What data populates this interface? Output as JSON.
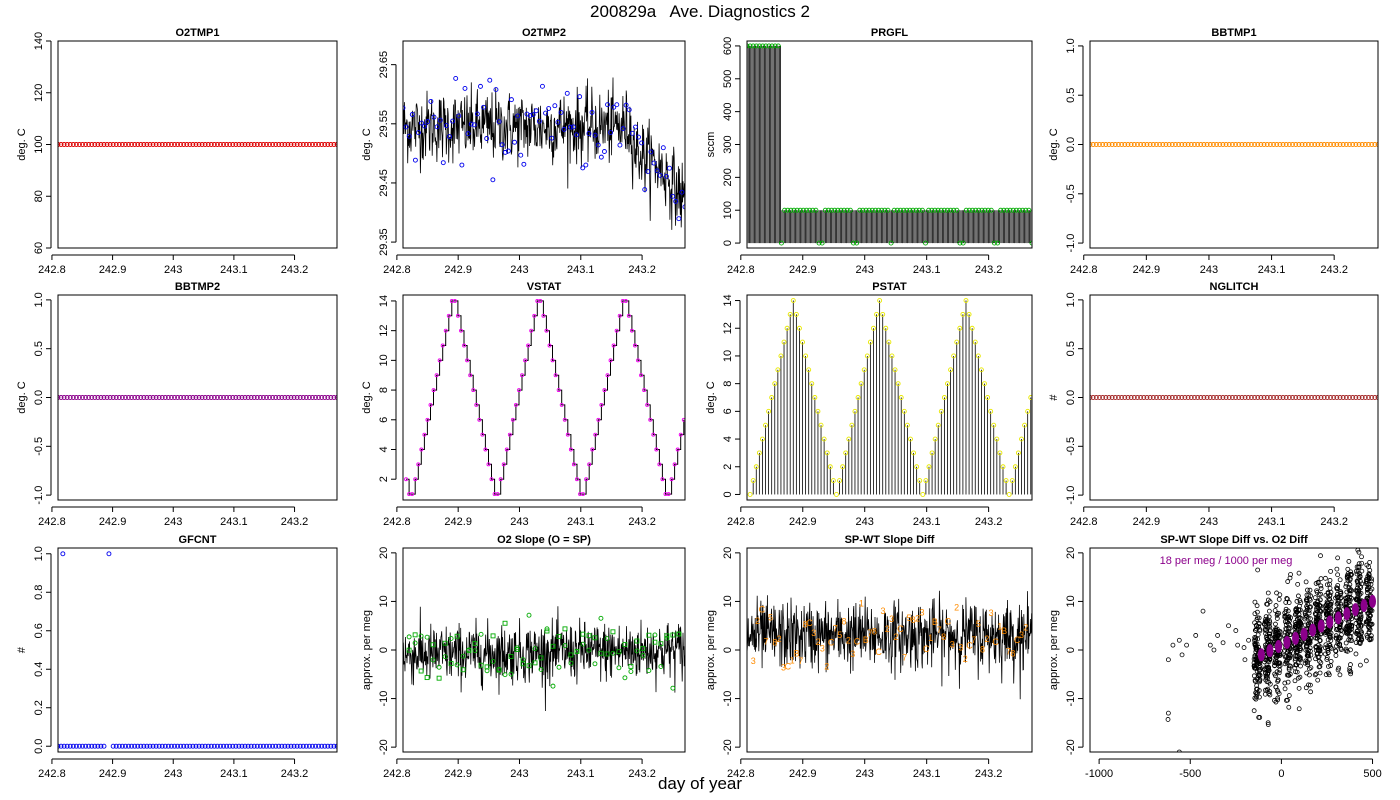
{
  "figure": {
    "title": "200829a   Ave. Diagnostics 2",
    "xlabel": "day of year"
  },
  "colors": {
    "red": "#dd0000",
    "blue": "#0000ee",
    "green": "#00aa00",
    "orange": "#ff8c00",
    "purple": "#8b008b",
    "magenta": "#ee00ee",
    "yellow": "#e8e800",
    "brown": "#a52a2a",
    "black": "#000000"
  },
  "chart_data": [
    {
      "id": "o2tmp1",
      "type": "scatter",
      "title": "O2TMP1",
      "ylabel": "deg. C",
      "xlim": [
        242.81,
        243.27
      ],
      "ylim": [
        60,
        140
      ],
      "xticks": [
        242.8,
        242.9,
        243.0,
        243.1,
        243.2
      ],
      "yticks": [
        60,
        80,
        100,
        120,
        140
      ],
      "series": [
        {
          "name": "O2TMP1",
          "style": "points",
          "color": "red",
          "x_range": [
            242.81,
            243.27
          ],
          "n": 92,
          "constant": 100
        }
      ]
    },
    {
      "id": "o2tmp2",
      "type": "line",
      "title": "O2TMP2",
      "ylabel": "deg. C",
      "xlim": [
        242.81,
        243.27
      ],
      "ylim": [
        29.34,
        29.69
      ],
      "xticks": [
        242.8,
        242.9,
        243.0,
        243.1,
        243.2
      ],
      "yticks": [
        29.35,
        29.45,
        29.55,
        29.65
      ],
      "series": [
        {
          "name": "raw",
          "style": "noise",
          "color": "black",
          "x_range": [
            242.81,
            243.27
          ],
          "n": 600,
          "base": [
            [
              242.81,
              29.545
            ],
            [
              243.18,
              29.545
            ],
            [
              243.19,
              29.505
            ],
            [
              243.23,
              29.475
            ],
            [
              243.27,
              29.42
            ]
          ],
          "noise": 0.06,
          "clamp": [
            29.36,
            29.68
          ]
        },
        {
          "name": "average",
          "style": "points",
          "color": "blue",
          "x_range": [
            242.81,
            243.27
          ],
          "n": 92,
          "base": [
            [
              242.81,
              29.545
            ],
            [
              243.18,
              29.545
            ],
            [
              243.19,
              29.505
            ],
            [
              243.23,
              29.475
            ],
            [
              243.27,
              29.41
            ]
          ],
          "noise": 0.035
        }
      ]
    },
    {
      "id": "prgfl",
      "type": "line",
      "title": "PRGFL",
      "ylabel": "sccm",
      "xlim": [
        242.81,
        243.27
      ],
      "ylim": [
        -15,
        615
      ],
      "xticks": [
        242.8,
        242.9,
        243.0,
        243.1,
        243.2
      ],
      "yticks": [
        0,
        100,
        200,
        300,
        400,
        500,
        600
      ],
      "series": [
        {
          "name": "raw",
          "style": "spikes",
          "color": "black",
          "x_range": [
            242.81,
            243.27
          ],
          "n": 230,
          "level_segments": [
            [
              242.81,
              242.866,
              600
            ],
            [
              242.866,
              243.27,
              100
            ]
          ],
          "baseline": 0
        },
        {
          "name": "average",
          "style": "points",
          "color": "green",
          "x_range": [
            242.81,
            243.27
          ],
          "n": 92,
          "level_segments": [
            [
              242.81,
              242.866,
              600
            ],
            [
              242.866,
              243.27,
              100
            ]
          ],
          "dips": [
            242.866,
            242.928,
            242.985,
            243.042,
            243.099,
            243.156,
            243.213,
            243.27
          ],
          "dip_value": 0
        }
      ]
    },
    {
      "id": "bbtmp1",
      "type": "scatter",
      "title": "BBTMP1",
      "ylabel": "deg. C",
      "xlim": [
        242.81,
        243.27
      ],
      "ylim": [
        -1.05,
        1.05
      ],
      "xticks": [
        242.8,
        242.9,
        243.0,
        243.1,
        243.2
      ],
      "yticks": [
        -1.0,
        -0.5,
        0.0,
        0.5,
        1.0
      ],
      "series": [
        {
          "name": "BBTMP1",
          "style": "points",
          "color": "orange",
          "x_range": [
            242.81,
            243.27
          ],
          "n": 92,
          "constant": 0
        }
      ]
    },
    {
      "id": "bbtmp2",
      "type": "scatter",
      "title": "BBTMP2",
      "ylabel": "deg. C",
      "xlim": [
        242.81,
        243.27
      ],
      "ylim": [
        -1.05,
        1.05
      ],
      "xticks": [
        242.8,
        242.9,
        243.0,
        243.1,
        243.2
      ],
      "yticks": [
        -1.0,
        -0.5,
        0.0,
        0.5,
        1.0
      ],
      "series": [
        {
          "name": "BBTMP2",
          "style": "points",
          "color": "purple",
          "x_range": [
            242.81,
            243.27
          ],
          "n": 92,
          "constant": 0
        }
      ]
    },
    {
      "id": "vstat",
      "type": "line",
      "title": "VSTAT",
      "ylabel": "deg. C",
      "xlim": [
        242.81,
        243.27
      ],
      "ylim": [
        0.6,
        14.4
      ],
      "xticks": [
        242.8,
        242.9,
        243.0,
        243.1,
        243.2
      ],
      "yticks": [
        2,
        4,
        6,
        8,
        10,
        12,
        14
      ],
      "series": [
        {
          "name": "raw",
          "style": "step",
          "color": "black",
          "x_range": [
            242.815,
            243.268
          ],
          "n": 92,
          "cycle": [
            2,
            1,
            1,
            2,
            3,
            4,
            5,
            6,
            7,
            8,
            9,
            10,
            11,
            12,
            13,
            14,
            14,
            13,
            12,
            11,
            10,
            9,
            8,
            7,
            6,
            5,
            4,
            3
          ]
        },
        {
          "name": "average",
          "style": "points",
          "color": "magenta",
          "x_range": [
            242.815,
            243.268
          ],
          "n": 92,
          "cycle": [
            2,
            1,
            1,
            2,
            3,
            4,
            5,
            6,
            7,
            8,
            9,
            10,
            11,
            12,
            13,
            14,
            14,
            13,
            12,
            11,
            10,
            9,
            8,
            7,
            6,
            5,
            4,
            3
          ],
          "radius": 1.5
        }
      ]
    },
    {
      "id": "pstat",
      "type": "bar",
      "title": "PSTAT",
      "ylabel": "deg. C",
      "xlim": [
        242.81,
        243.27
      ],
      "ylim": [
        -0.4,
        14.4
      ],
      "xticks": [
        242.8,
        242.9,
        243.0,
        243.1,
        243.2
      ],
      "yticks": [
        0,
        2,
        4,
        6,
        8,
        10,
        12,
        14
      ],
      "series": [
        {
          "name": "raw",
          "style": "spikes",
          "color": "black",
          "x_range": [
            242.815,
            243.268
          ],
          "n": 92,
          "baseline": 0,
          "cycle": [
            0,
            1,
            2,
            3,
            4,
            5,
            6,
            7,
            8,
            9,
            10,
            11,
            12,
            13,
            14,
            13,
            12,
            11,
            10,
            9,
            8,
            7,
            6,
            5,
            4,
            3,
            2,
            1
          ]
        },
        {
          "name": "average",
          "style": "points",
          "color": "yellow",
          "x_range": [
            242.815,
            243.268
          ],
          "n": 92,
          "cycle": [
            0,
            1,
            2,
            3,
            4,
            5,
            6,
            7,
            8,
            9,
            10,
            11,
            12,
            13,
            14,
            13,
            12,
            11,
            10,
            9,
            8,
            7,
            6,
            5,
            4,
            3,
            2,
            1
          ]
        }
      ]
    },
    {
      "id": "nglitch",
      "type": "scatter",
      "title": "NGLITCH",
      "ylabel": "#",
      "xlim": [
        242.81,
        243.27
      ],
      "ylim": [
        -1.05,
        1.05
      ],
      "xticks": [
        242.8,
        242.9,
        243.0,
        243.1,
        243.2
      ],
      "yticks": [
        -1.0,
        -0.5,
        0.0,
        0.5,
        1.0
      ],
      "series": [
        {
          "name": "NGLITCH",
          "style": "points",
          "color": "brown",
          "x_range": [
            242.81,
            243.27
          ],
          "n": 92,
          "constant": 0
        }
      ]
    },
    {
      "id": "gfcnt",
      "type": "scatter",
      "title": "GFCNT",
      "ylabel": "#",
      "xlim": [
        242.81,
        243.27
      ],
      "ylim": [
        -0.03,
        1.03
      ],
      "xticks": [
        242.8,
        242.9,
        243.0,
        243.1,
        243.2
      ],
      "yticks": [
        0.0,
        0.2,
        0.4,
        0.6,
        0.8,
        1.0
      ],
      "series": [
        {
          "name": "GFCNT",
          "style": "points",
          "color": "blue",
          "x_range": [
            242.81,
            243.27
          ],
          "n": 92,
          "constant": 0,
          "extra_points": [
            [
              242.818,
              1.0
            ],
            [
              242.894,
              1.0
            ]
          ],
          "gap": [
            242.889,
            242.899
          ]
        }
      ]
    },
    {
      "id": "o2slope",
      "type": "line",
      "title": "O2 Slope (O = SP)",
      "ylabel": "approx. per meg",
      "xlim": [
        242.81,
        243.27
      ],
      "ylim": [
        -21,
        21
      ],
      "xticks": [
        242.8,
        242.9,
        243.0,
        243.1,
        243.2
      ],
      "yticks": [
        -20,
        -10,
        0,
        10,
        20
      ],
      "series": [
        {
          "name": "raw",
          "style": "noise",
          "color": "black",
          "x_range": [
            242.81,
            243.27
          ],
          "n": 700,
          "base": [
            [
              242.81,
              -1
            ],
            [
              243.27,
              0
            ]
          ],
          "noise": 6,
          "clamp": [
            -20.5,
            20.5
          ]
        },
        {
          "name": "O",
          "style": "points",
          "color": "green",
          "x_range": [
            242.82,
            243.26
          ],
          "n": 46,
          "base": [
            [
              242.82,
              0
            ],
            [
              243.26,
              0
            ]
          ],
          "noise": 3
        },
        {
          "name": "SP",
          "style": "squares",
          "color": "green",
          "x_range": [
            242.82,
            243.26
          ],
          "n": 46,
          "base": [
            [
              242.82,
              0
            ],
            [
              243.26,
              0
            ]
          ],
          "noise": 3
        }
      ]
    },
    {
      "id": "spwt",
      "type": "line",
      "title": "SP-WT Slope Diff",
      "ylabel": "approx. per meg",
      "xlim": [
        242.81,
        243.27
      ],
      "ylim": [
        -21,
        21
      ],
      "xticks": [
        242.8,
        242.9,
        243.0,
        243.1,
        243.2
      ],
      "yticks": [
        -20,
        -10,
        0,
        10,
        20
      ],
      "series": [
        {
          "name": "raw",
          "style": "noise",
          "color": "black",
          "x_range": [
            242.81,
            243.27
          ],
          "n": 700,
          "base": [
            [
              242.81,
              3
            ],
            [
              243.27,
              3
            ]
          ],
          "noise": 7,
          "clamp": [
            -20.5,
            20.5
          ]
        },
        {
          "name": "codes",
          "style": "labels",
          "color": "orange",
          "x_range": [
            242.82,
            243.26
          ],
          "n": 64,
          "labels": [
            "3",
            "2",
            "C",
            "7",
            "5",
            "8",
            "2",
            "3",
            "C",
            "1",
            "B",
            "7",
            "8",
            "C",
            "3",
            "2"
          ],
          "base": [
            [
              242.82,
              3
            ],
            [
              243.26,
              3
            ]
          ],
          "noise": 3
        }
      ]
    },
    {
      "id": "spwt-vs-o2",
      "type": "scatter",
      "title": "SP-WT Slope Diff vs. O2 Diff",
      "ylabel": "approx. per meg",
      "xlim": [
        -1050,
        530
      ],
      "ylim": [
        -21,
        21
      ],
      "xticks": [
        -1000,
        -500,
        0,
        500
      ],
      "yticks": [
        -20,
        -10,
        0,
        10,
        20
      ],
      "annotation": "18 per meg / 1000 per meg",
      "series": [
        {
          "name": "points",
          "style": "cloud",
          "color": "black",
          "x_range": [
            -150,
            520
          ],
          "n": 1200,
          "slope": 0.018,
          "intercept": 1,
          "spread": 5
        },
        {
          "name": "sparse",
          "style": "sparse",
          "color": "black",
          "points": [
            [
              -620,
              -2
            ],
            [
              -620,
              -13
            ],
            [
              -622,
              -14.3
            ],
            [
              -595,
              1
            ],
            [
              -560,
              2
            ],
            [
              -545,
              -1
            ],
            [
              -520,
              1
            ],
            [
              -470,
              3
            ],
            [
              -430,
              8
            ],
            [
              -390,
              1
            ],
            [
              -370,
              0
            ],
            [
              -350,
              3
            ],
            [
              -320,
              1.5
            ],
            [
              -290,
              5
            ],
            [
              -250,
              4
            ],
            [
              -240,
              1
            ],
            [
              -205,
              0.5
            ],
            [
              -180,
              2
            ],
            [
              -200,
              -2
            ],
            [
              -560,
              -21
            ]
          ]
        },
        {
          "name": "means",
          "style": "means",
          "color": "purple",
          "x_range": [
            -110,
            500
          ],
          "n": 14,
          "slope": 0.018,
          "intercept": 1
        }
      ]
    }
  ]
}
